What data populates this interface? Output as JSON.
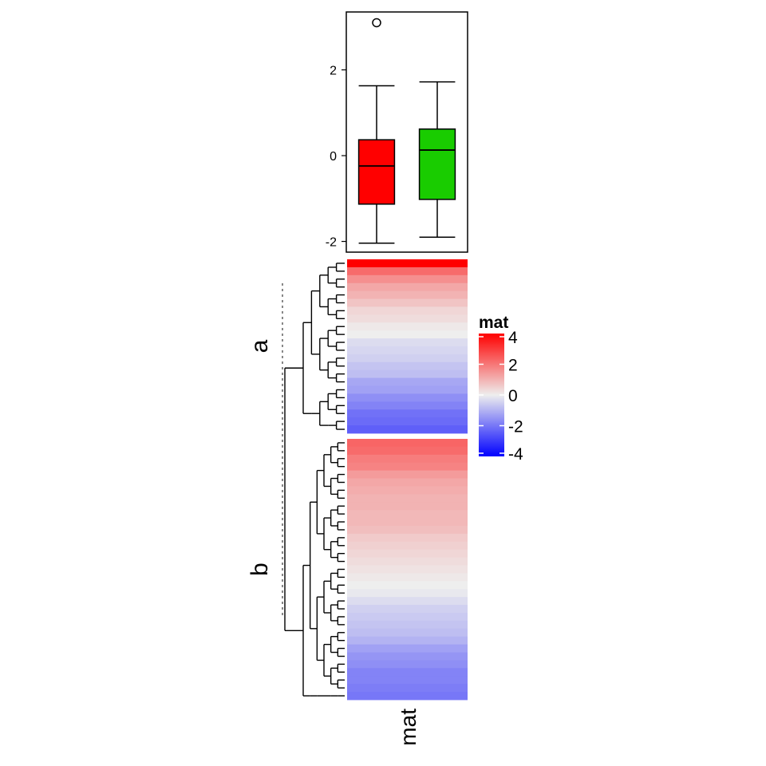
{
  "chart_data": [
    {
      "type": "boxplot",
      "title": "",
      "ylim": [
        -2.25,
        3.35
      ],
      "yticks": [
        -2,
        0,
        2
      ],
      "ytick_labels": [
        "-2",
        "0",
        "2"
      ],
      "groups": [
        {
          "name": "a",
          "color": "#ff0000",
          "whisker_low": -2.04,
          "q1": -1.13,
          "median": -0.24,
          "q3": 0.37,
          "whisker_high": 1.63,
          "outliers": [
            3.1
          ]
        },
        {
          "name": "b",
          "color": "#19cc00",
          "whisker_low": -1.9,
          "q1": -1.02,
          "median": 0.13,
          "q3": 0.62,
          "whisker_high": 1.72,
          "outliers": []
        }
      ]
    },
    {
      "type": "heatmap",
      "column_labels": [
        "mat"
      ],
      "row_splits": [
        {
          "label": "a",
          "values": [
            4.0,
            2.2,
            1.6,
            1.2,
            1.0,
            0.7,
            0.4,
            0.3,
            0.1,
            0.0,
            -0.3,
            -0.4,
            -0.5,
            -0.7,
            -0.8,
            -1.2,
            -1.3,
            -1.6,
            -1.8,
            -2.1,
            -2.2,
            -2.4
          ]
        },
        {
          "label": "b",
          "values": [
            2.3,
            2.2,
            1.9,
            1.8,
            1.4,
            1.2,
            1.1,
            1.0,
            1.0,
            0.9,
            0.9,
            0.8,
            0.6,
            0.5,
            0.4,
            0.3,
            0.2,
            0.1,
            0.0,
            -0.1,
            -0.3,
            -0.5,
            -0.6,
            -0.7,
            -0.8,
            -1.0,
            -1.3,
            -1.5,
            -1.6,
            -1.8,
            -1.8,
            -1.9,
            -2.0
          ]
        }
      ]
    }
  ],
  "legend": {
    "title": "mat",
    "ticks": [
      4,
      2,
      0,
      -2,
      -4
    ],
    "tick_labels": [
      "4",
      "2",
      "0",
      "-2",
      "-4"
    ],
    "colors": {
      "low": "#0000ff",
      "mid": "#eeeeee",
      "high": "#ff0000"
    },
    "range": [
      -4,
      4
    ]
  }
}
